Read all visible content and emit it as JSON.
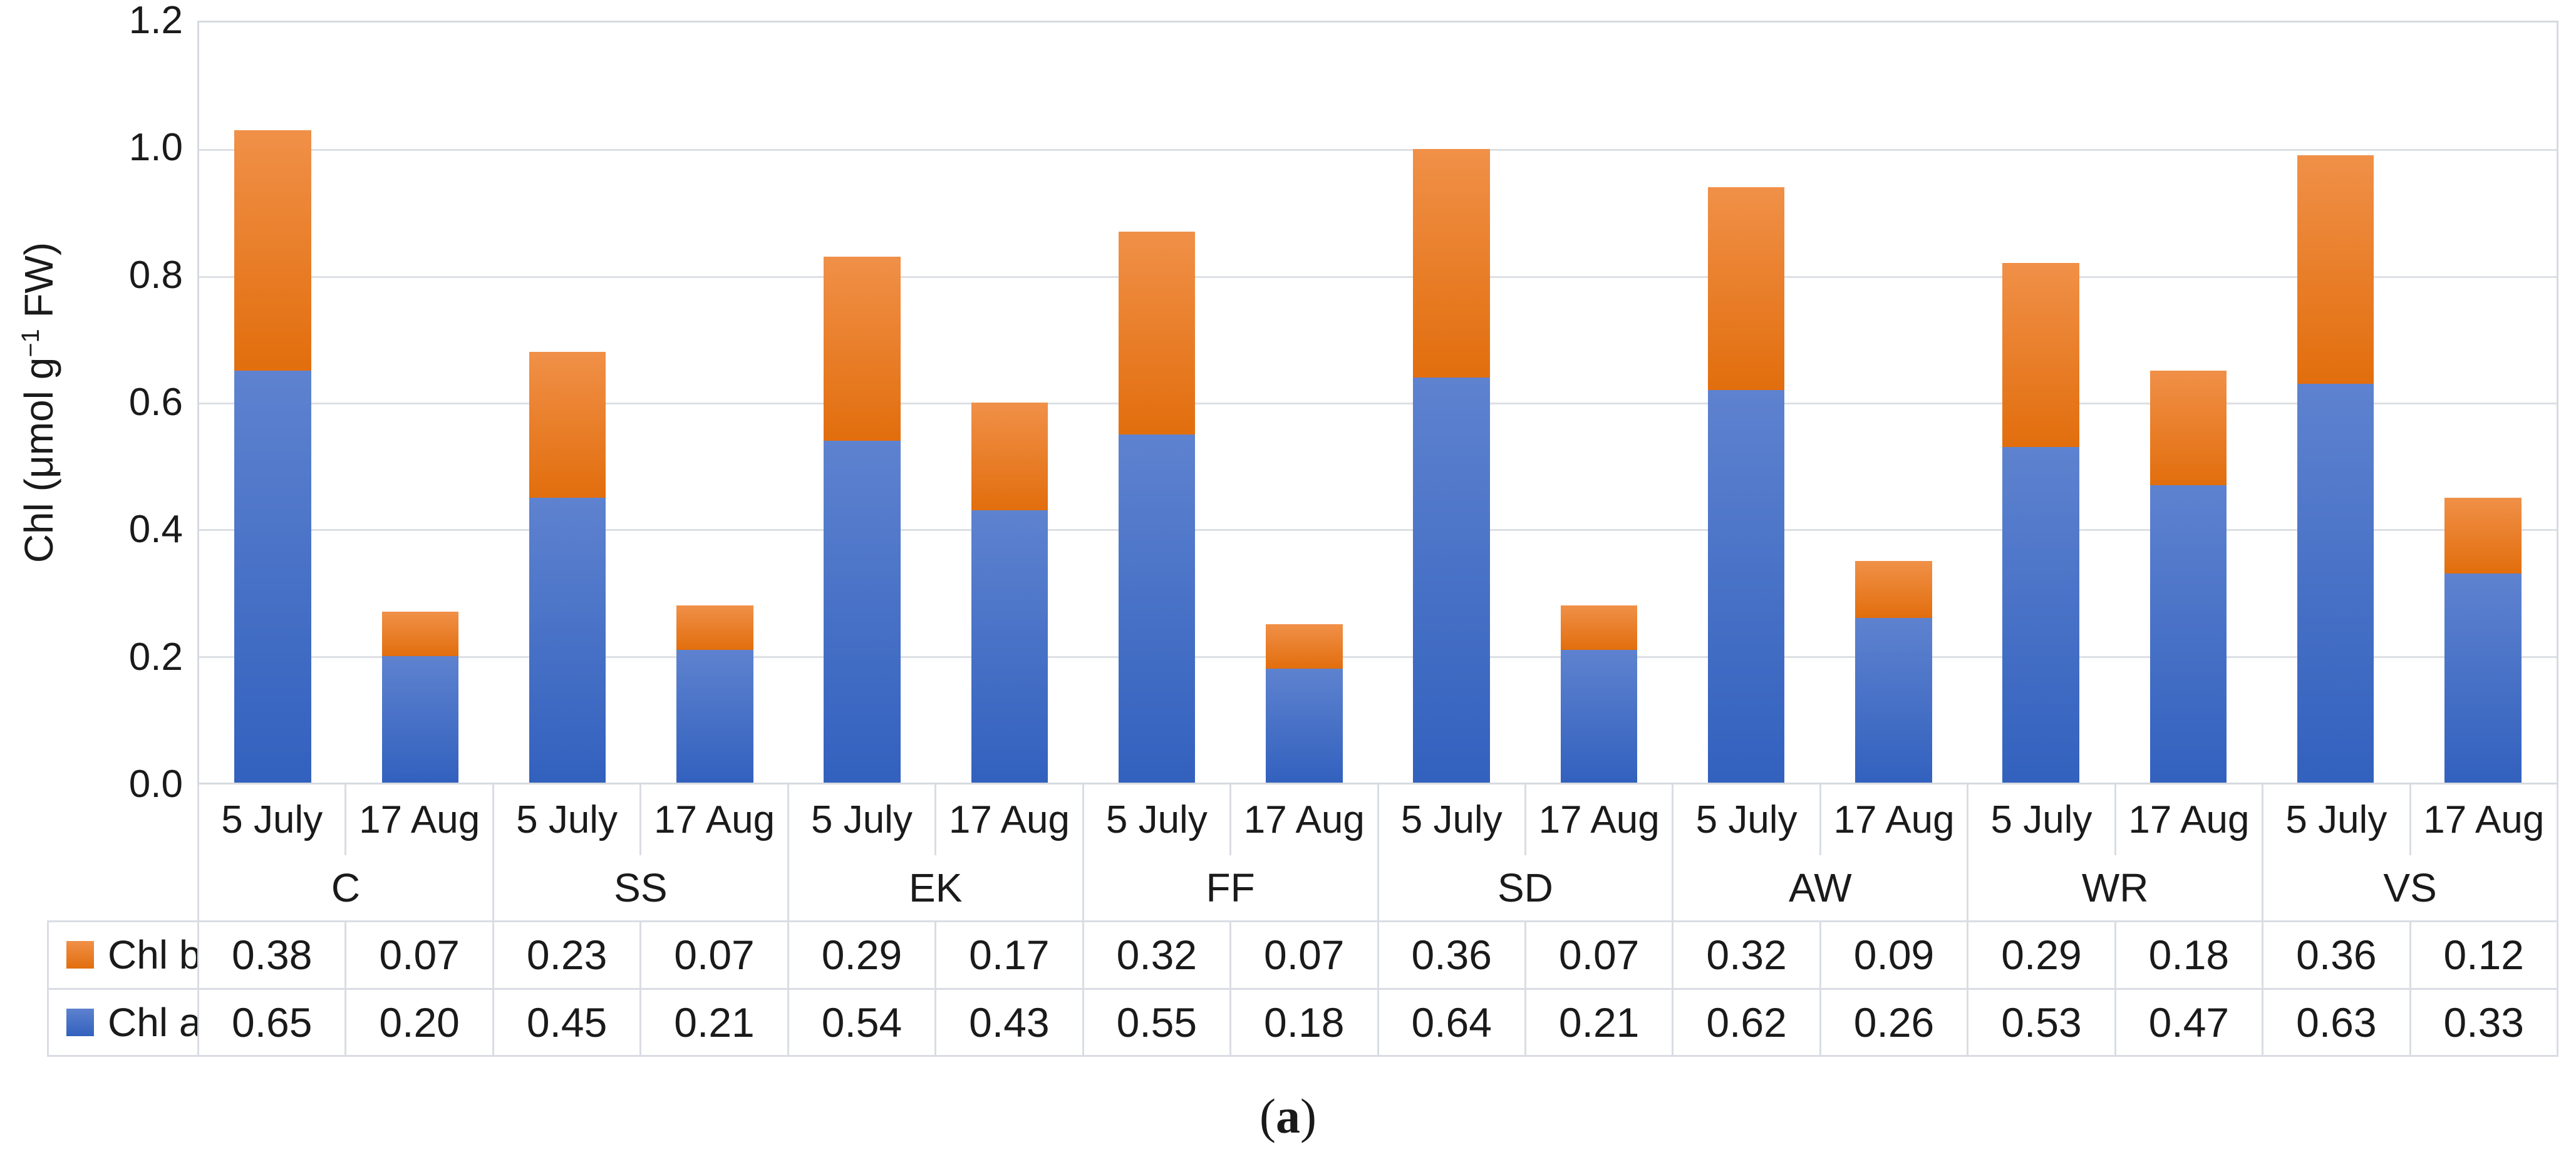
{
  "figure": {
    "caption": {
      "open": "(",
      "letter": "a",
      "close": ")"
    },
    "y_axis": {
      "title_prefix": "Chl (μmol g",
      "title_sup": "−1",
      "title_suffix": " FW)"
    }
  },
  "colors": {
    "chl_a_blue": "#4472C4",
    "chl_b_orange": "#ED7D31",
    "gridline": "#DCE0E5",
    "table_border": "#D9DDE3"
  },
  "chart_data": {
    "type": "bar",
    "stacked": true,
    "grid": "horizontal",
    "legend_position": "table-left",
    "ylabel": "Chl (μmol g−1 FW)",
    "ylim": [
      0,
      1.2
    ],
    "yticks": [
      "0.0",
      "0.2",
      "0.4",
      "0.6",
      "0.8",
      "1.0",
      "1.2"
    ],
    "groups": [
      "C",
      "SS",
      "EK",
      "FF",
      "SD",
      "AW",
      "WR",
      "VS"
    ],
    "dates": [
      "5 July",
      "17 Aug"
    ],
    "value_format": "2dp",
    "table_row_order": [
      "Chl b",
      "Chl a"
    ],
    "series": [
      {
        "name": "Chl a",
        "color": "#4472C4",
        "gradient_top": "#5E82CF",
        "gradient_bottom": "#3261BE",
        "stack_position": "bottom",
        "values": [
          [
            0.65,
            0.2
          ],
          [
            0.45,
            0.21
          ],
          [
            0.54,
            0.43
          ],
          [
            0.55,
            0.18
          ],
          [
            0.64,
            0.21
          ],
          [
            0.62,
            0.26
          ],
          [
            0.53,
            0.47
          ],
          [
            0.63,
            0.33
          ]
        ]
      },
      {
        "name": "Chl b",
        "color": "#ED7D31",
        "gradient_top": "#F09048",
        "gradient_bottom": "#E26E0D",
        "stack_position": "top",
        "values": [
          [
            0.38,
            0.07
          ],
          [
            0.23,
            0.07
          ],
          [
            0.29,
            0.17
          ],
          [
            0.32,
            0.07
          ],
          [
            0.36,
            0.07
          ],
          [
            0.32,
            0.09
          ],
          [
            0.29,
            0.18
          ],
          [
            0.36,
            0.12
          ]
        ]
      }
    ]
  }
}
